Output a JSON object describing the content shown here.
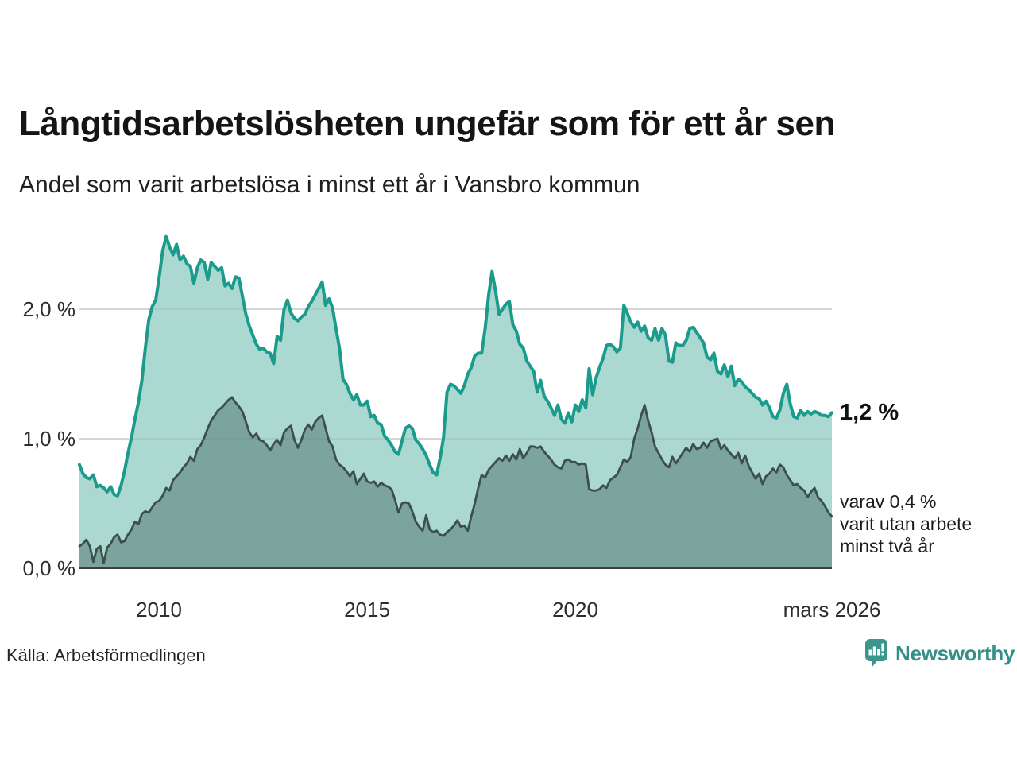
{
  "header": {
    "title": "Långtidsarbetslösheten ungefär som för ett år sen",
    "subtitle": "Andel som varit arbetslösa i minst ett år i Vansbro kommun"
  },
  "annotations": {
    "end_value_label": "1,2 %",
    "side_note": "varav 0,4 %\nvarit utan arbete\nminst två år"
  },
  "footer": {
    "source": "Källa: Arbetsförmedlingen",
    "brand": "Newsworthy"
  },
  "colors": {
    "line_1yr": "#1a9b8c",
    "fill_1yr": "#abd8d0",
    "line_2yr": "#3d4f4b",
    "fill_2yr": "#7aa49c",
    "gridline": "#e2e2e2",
    "axis": "#3f3f3f",
    "brand_teal": "#329088"
  },
  "chart_data": {
    "type": "area",
    "title": "Långtidsarbetslösheten ungefär som för ett år sen",
    "subtitle": "Andel som varit arbetslösa i minst ett år i Vansbro kommun",
    "unit": "%",
    "x_monthly": {
      "start": "2008-02",
      "end": "2026-03",
      "points": 218
    },
    "x_axis_ticks": [
      {
        "label": "2010",
        "year": 2010
      },
      {
        "label": "2015",
        "year": 2015
      },
      {
        "label": "2020",
        "year": 2020
      },
      {
        "label": "mars 2026",
        "year": 2026.25
      }
    ],
    "y_axis_ticks": [
      {
        "label": "0,0 %",
        "value": 0
      },
      {
        "label": "1,0 %",
        "value": 1
      },
      {
        "label": "2,0 %",
        "value": 2
      }
    ],
    "ylim": [
      0,
      2.7
    ],
    "grid": true,
    "legend_position": "none",
    "series": [
      {
        "name": "Arbetslösa minst ett år",
        "end_value": 1.2,
        "values": [
          0.8,
          0.73,
          0.7,
          0.69,
          0.72,
          0.63,
          0.64,
          0.62,
          0.59,
          0.63,
          0.57,
          0.56,
          0.64,
          0.75,
          0.89,
          1.01,
          1.15,
          1.28,
          1.45,
          1.7,
          1.92,
          2.02,
          2.07,
          2.25,
          2.45,
          2.56,
          2.48,
          2.42,
          2.5,
          2.38,
          2.41,
          2.35,
          2.33,
          2.2,
          2.32,
          2.38,
          2.36,
          2.23,
          2.36,
          2.33,
          2.3,
          2.32,
          2.18,
          2.2,
          2.16,
          2.25,
          2.24,
          2.1,
          1.96,
          1.87,
          1.8,
          1.73,
          1.69,
          1.7,
          1.67,
          1.66,
          1.58,
          1.79,
          1.76,
          2.0,
          2.07,
          1.97,
          1.93,
          1.91,
          1.94,
          1.96,
          2.02,
          2.06,
          2.11,
          2.16,
          2.21,
          2.03,
          2.08,
          2.01,
          1.85,
          1.7,
          1.46,
          1.42,
          1.35,
          1.3,
          1.34,
          1.26,
          1.26,
          1.29,
          1.17,
          1.18,
          1.12,
          1.11,
          1.02,
          0.99,
          0.95,
          0.9,
          0.88,
          0.98,
          1.08,
          1.1,
          1.08,
          0.99,
          0.96,
          0.92,
          0.87,
          0.8,
          0.74,
          0.72,
          0.85,
          1.01,
          1.36,
          1.42,
          1.41,
          1.38,
          1.35,
          1.41,
          1.5,
          1.55,
          1.64,
          1.66,
          1.66,
          1.85,
          2.11,
          2.29,
          2.14,
          1.96,
          2.0,
          2.04,
          2.06,
          1.88,
          1.83,
          1.73,
          1.7,
          1.6,
          1.56,
          1.52,
          1.36,
          1.45,
          1.33,
          1.29,
          1.24,
          1.18,
          1.26,
          1.15,
          1.12,
          1.2,
          1.13,
          1.26,
          1.21,
          1.3,
          1.24,
          1.54,
          1.34,
          1.47,
          1.55,
          1.62,
          1.72,
          1.73,
          1.71,
          1.67,
          1.7,
          2.03,
          1.97,
          1.9,
          1.86,
          1.9,
          1.83,
          1.87,
          1.78,
          1.76,
          1.85,
          1.76,
          1.85,
          1.8,
          1.6,
          1.59,
          1.74,
          1.72,
          1.72,
          1.76,
          1.85,
          1.86,
          1.82,
          1.78,
          1.74,
          1.63,
          1.61,
          1.66,
          1.52,
          1.5,
          1.57,
          1.48,
          1.56,
          1.41,
          1.46,
          1.44,
          1.4,
          1.38,
          1.35,
          1.32,
          1.31,
          1.26,
          1.29,
          1.24,
          1.17,
          1.16,
          1.22,
          1.35,
          1.42,
          1.27,
          1.17,
          1.16,
          1.22,
          1.18,
          1.21,
          1.19,
          1.21,
          1.2,
          1.18,
          1.18,
          1.17,
          1.2
        ]
      },
      {
        "name": "Arbetslösa minst två år",
        "end_value": 0.4,
        "values": [
          0.17,
          0.19,
          0.22,
          0.17,
          0.05,
          0.15,
          0.17,
          0.04,
          0.16,
          0.19,
          0.24,
          0.26,
          0.2,
          0.21,
          0.26,
          0.3,
          0.36,
          0.34,
          0.42,
          0.44,
          0.43,
          0.47,
          0.51,
          0.52,
          0.56,
          0.62,
          0.6,
          0.68,
          0.71,
          0.74,
          0.78,
          0.81,
          0.86,
          0.83,
          0.92,
          0.95,
          1.01,
          1.08,
          1.14,
          1.18,
          1.22,
          1.24,
          1.27,
          1.3,
          1.32,
          1.28,
          1.25,
          1.21,
          1.13,
          1.05,
          1.01,
          1.04,
          0.99,
          0.98,
          0.95,
          0.91,
          0.96,
          0.99,
          0.95,
          1.05,
          1.08,
          1.1,
          0.99,
          0.93,
          0.99,
          1.07,
          1.11,
          1.07,
          1.13,
          1.16,
          1.18,
          1.08,
          0.98,
          0.94,
          0.84,
          0.8,
          0.78,
          0.75,
          0.71,
          0.75,
          0.65,
          0.69,
          0.73,
          0.67,
          0.66,
          0.67,
          0.63,
          0.66,
          0.64,
          0.63,
          0.61,
          0.53,
          0.43,
          0.5,
          0.51,
          0.5,
          0.44,
          0.36,
          0.32,
          0.29,
          0.41,
          0.3,
          0.28,
          0.29,
          0.26,
          0.25,
          0.28,
          0.3,
          0.33,
          0.37,
          0.32,
          0.33,
          0.29,
          0.4,
          0.5,
          0.62,
          0.72,
          0.7,
          0.76,
          0.79,
          0.82,
          0.85,
          0.83,
          0.87,
          0.83,
          0.88,
          0.84,
          0.92,
          0.85,
          0.89,
          0.94,
          0.94,
          0.93,
          0.94,
          0.9,
          0.87,
          0.84,
          0.8,
          0.78,
          0.77,
          0.83,
          0.84,
          0.82,
          0.82,
          0.8,
          0.81,
          0.8,
          0.61,
          0.6,
          0.6,
          0.61,
          0.64,
          0.62,
          0.68,
          0.7,
          0.72,
          0.78,
          0.84,
          0.82,
          0.86,
          1.0,
          1.08,
          1.18,
          1.26,
          1.14,
          1.05,
          0.94,
          0.89,
          0.84,
          0.8,
          0.78,
          0.86,
          0.81,
          0.85,
          0.89,
          0.93,
          0.9,
          0.96,
          0.92,
          0.93,
          0.97,
          0.93,
          0.98,
          0.99,
          1.0,
          0.92,
          0.95,
          0.91,
          0.88,
          0.85,
          0.89,
          0.81,
          0.87,
          0.79,
          0.74,
          0.69,
          0.73,
          0.65,
          0.71,
          0.73,
          0.77,
          0.74,
          0.8,
          0.78,
          0.72,
          0.68,
          0.64,
          0.65,
          0.62,
          0.6,
          0.55,
          0.59,
          0.62,
          0.55,
          0.52,
          0.48,
          0.43,
          0.4
        ]
      }
    ]
  }
}
